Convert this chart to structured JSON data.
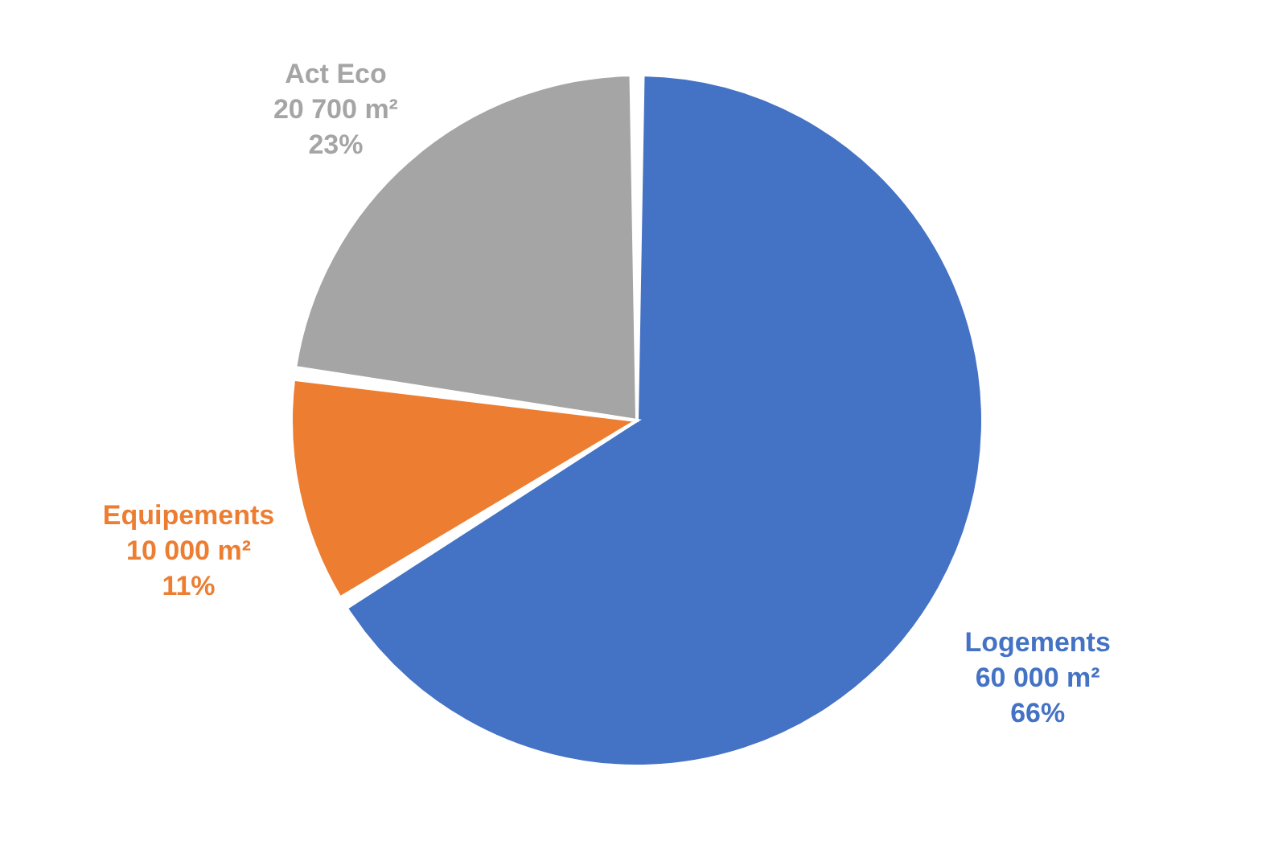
{
  "chart_data": {
    "type": "pie",
    "categories": [
      "Logements",
      "Equipements",
      "Act Eco"
    ],
    "values": [
      60000,
      10000,
      20700
    ],
    "colors": [
      "#4472c4",
      "#ed7d31",
      "#a5a5a5"
    ],
    "value_labels": [
      "60 000 m²\n66%",
      "10 000 m²\n11%",
      "20 700 m²\n23%"
    ]
  }
}
